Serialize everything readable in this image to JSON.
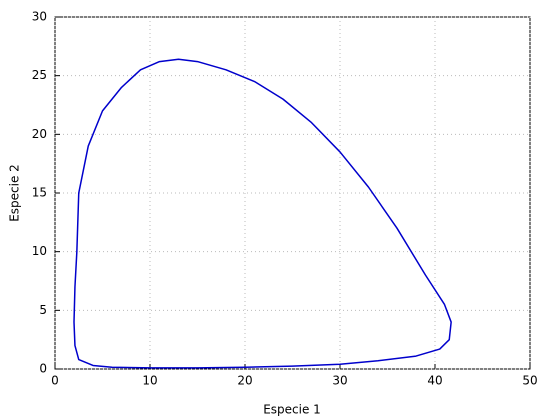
{
  "chart_data": {
    "type": "line",
    "xlabel": "Especie 1",
    "ylabel": "Especie 2",
    "series": [
      {
        "name": null,
        "color": "#0000cc",
        "x": [
          2.3,
          2.5,
          3.5,
          5,
          7,
          9,
          11,
          13,
          15,
          18,
          21,
          24,
          27,
          30,
          33,
          36,
          39,
          41,
          41.7,
          41.5,
          40.5,
          38,
          34,
          30,
          25,
          20,
          15,
          10,
          6,
          4,
          2.5,
          2.1,
          2,
          2.1,
          2.3
        ],
        "values": [
          10,
          15,
          19,
          22,
          24,
          25.5,
          26.2,
          26.4,
          26.2,
          25.5,
          24.5,
          23,
          21,
          18.5,
          15.5,
          12,
          8,
          5.5,
          4,
          2.5,
          1.7,
          1.1,
          0.7,
          0.4,
          0.25,
          0.15,
          0.1,
          0.1,
          0.15,
          0.3,
          0.8,
          2,
          4,
          7,
          10
        ]
      }
    ],
    "xlim": [
      0,
      50
    ],
    "xticks": [
      0,
      10,
      20,
      30,
      40,
      50
    ],
    "ylim": [
      0,
      30
    ],
    "yticks": [
      0,
      5,
      10,
      15,
      20,
      25,
      30
    ],
    "grid": true
  }
}
